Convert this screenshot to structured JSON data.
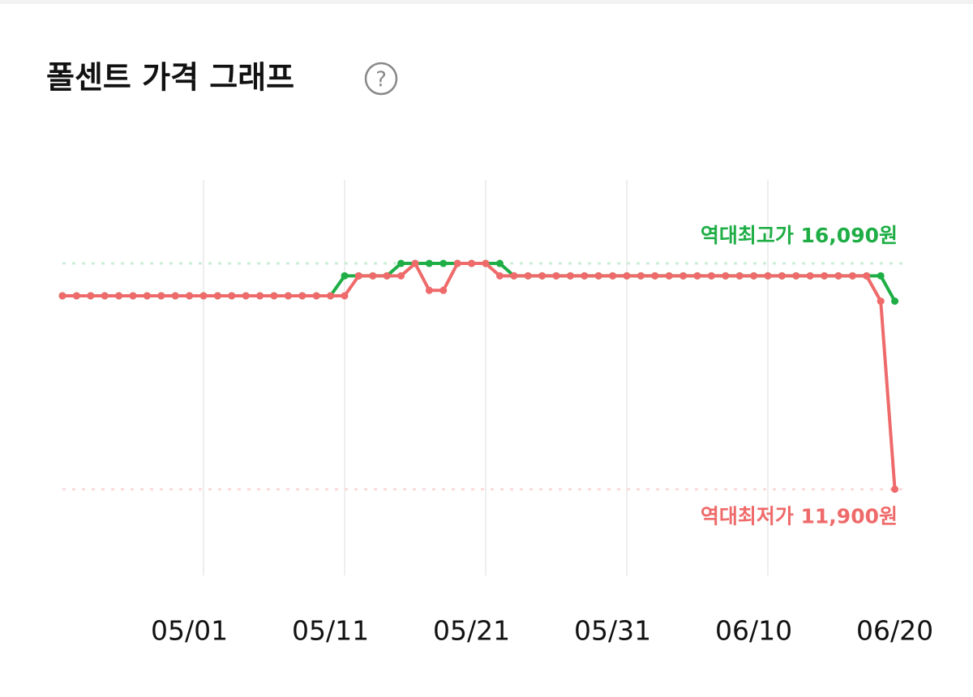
{
  "chart_data": {
    "type": "line",
    "title": "폴센트 가격 그래프",
    "categories": [
      null,
      null,
      null,
      null,
      null,
      null,
      null,
      null,
      null,
      "05/01",
      null,
      null,
      null,
      null,
      null,
      null,
      null,
      null,
      null,
      "05/11",
      null,
      null,
      null,
      null,
      null,
      null,
      null,
      null,
      null,
      "05/21",
      null,
      null,
      null,
      null,
      null,
      null,
      null,
      null,
      null,
      "05/31",
      null,
      null,
      null,
      null,
      null,
      null,
      null,
      null,
      null,
      "06/10",
      null,
      null,
      null,
      null,
      null,
      null,
      null,
      null,
      null,
      "06/20"
    ],
    "series": [
      {
        "color": "#1fae45",
        "values": [
          15490,
          15490,
          15490,
          15490,
          15490,
          15490,
          15490,
          15490,
          15490,
          15490,
          15490,
          15490,
          15490,
          15490,
          15490,
          15490,
          15490,
          15490,
          15490,
          15490,
          15860,
          15860,
          15860,
          15860,
          16090,
          16090,
          16090,
          16090,
          16090,
          16090,
          16090,
          16090,
          15860,
          15860,
          15860,
          15860,
          15860,
          15860,
          15860,
          15860,
          15860,
          15860,
          15860,
          15860,
          15860,
          15860,
          15860,
          15860,
          15860,
          15860,
          15860,
          15860,
          15860,
          15860,
          15860,
          15860,
          15860,
          15860,
          15860,
          15390
        ]
      },
      {
        "color": "#ef6a6a",
        "values": [
          15490,
          15490,
          15490,
          15490,
          15490,
          15490,
          15490,
          15490,
          15490,
          15490,
          15490,
          15490,
          15490,
          15490,
          15490,
          15490,
          15490,
          15490,
          15490,
          15490,
          15490,
          15860,
          15860,
          15860,
          15860,
          16090,
          15590,
          15590,
          16090,
          16090,
          16090,
          15860,
          15860,
          15860,
          15860,
          15860,
          15860,
          15860,
          15860,
          15860,
          15860,
          15860,
          15860,
          15860,
          15860,
          15860,
          15860,
          15860,
          15860,
          15860,
          15860,
          15860,
          15860,
          15860,
          15860,
          15860,
          15860,
          15860,
          15390,
          11900
        ]
      }
    ],
    "annotations": [
      {
        "label": "역대최고가 16,090원",
        "value": 16090,
        "color": "#1fae45",
        "line_color": "#cdeed6"
      },
      {
        "label": "역대최저가 11,900원",
        "value": 11900,
        "color": "#ef6a6a",
        "line_color": "#fbdcdc"
      }
    ],
    "ylim": [
      10300,
      17640
    ],
    "grid": true
  }
}
